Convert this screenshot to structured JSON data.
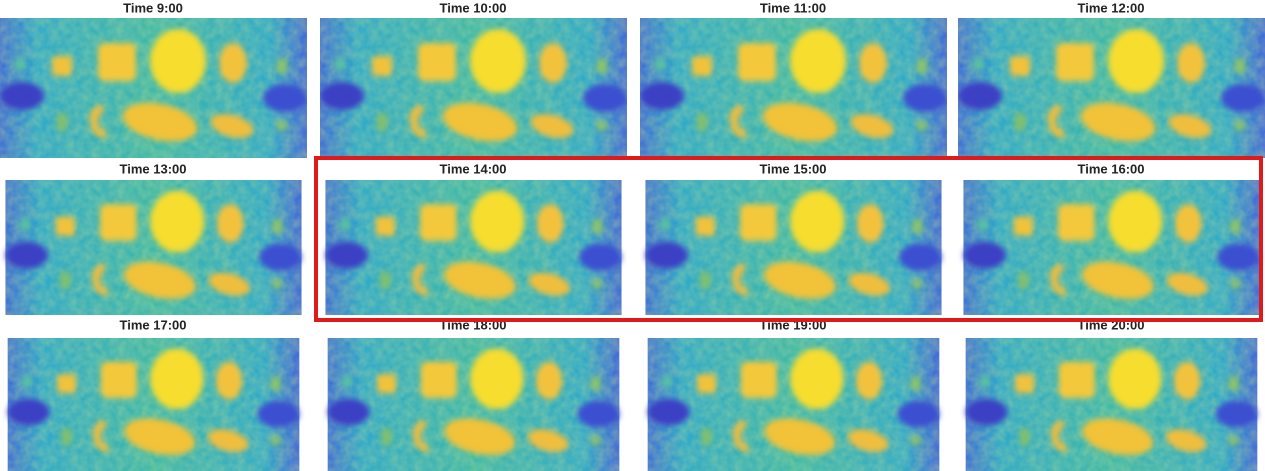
{
  "panels": [
    {
      "title": "Time 9:00"
    },
    {
      "title": "Time 10:00"
    },
    {
      "title": "Time 11:00"
    },
    {
      "title": "Time 12:00"
    },
    {
      "title": "Time 13:00"
    },
    {
      "title": "Time 14:00"
    },
    {
      "title": "Time 15:00"
    },
    {
      "title": "Time 16:00"
    },
    {
      "title": "Time 17:00"
    },
    {
      "title": "Time 18:00"
    },
    {
      "title": "Time 19:00"
    },
    {
      "title": "Time 20:00"
    }
  ]
}
